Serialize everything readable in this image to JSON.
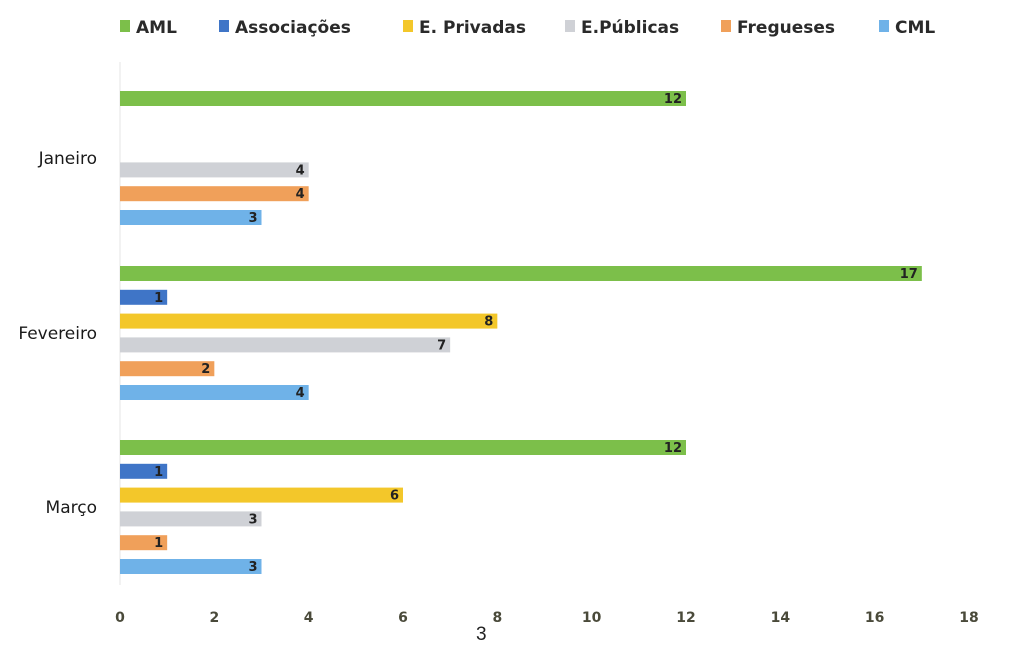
{
  "chart_data": {
    "type": "bar",
    "orientation": "horizontal",
    "title": "",
    "xlabel": "",
    "ylabel": "",
    "categories": [
      "Janeiro",
      "Fevereiro",
      "Março"
    ],
    "series": [
      {
        "name": "AML",
        "color": "#7cbf4a",
        "values": [
          12,
          17,
          12
        ]
      },
      {
        "name": "Associações",
        "color": "#3f75c7",
        "values": [
          null,
          1,
          1
        ]
      },
      {
        "name": "E. Privadas",
        "color": "#f3c72a",
        "values": [
          null,
          8,
          6
        ]
      },
      {
        "name": "E.Públicas",
        "color": "#cfd1d6",
        "values": [
          4,
          7,
          3
        ]
      },
      {
        "name": "Fregueses",
        "color": "#f0a05a",
        "values": [
          4,
          2,
          1
        ]
      },
      {
        "name": "CML",
        "color": "#6fb2e8",
        "values": [
          3,
          4,
          3
        ]
      }
    ],
    "xlim": [
      0,
      18
    ],
    "xticks": [
      "0",
      "2",
      "4",
      "6",
      "8",
      "10",
      "12",
      "14",
      "16",
      "18"
    ],
    "legend_position": "top",
    "grid": false,
    "data_labels": true
  },
  "page_number": "3"
}
